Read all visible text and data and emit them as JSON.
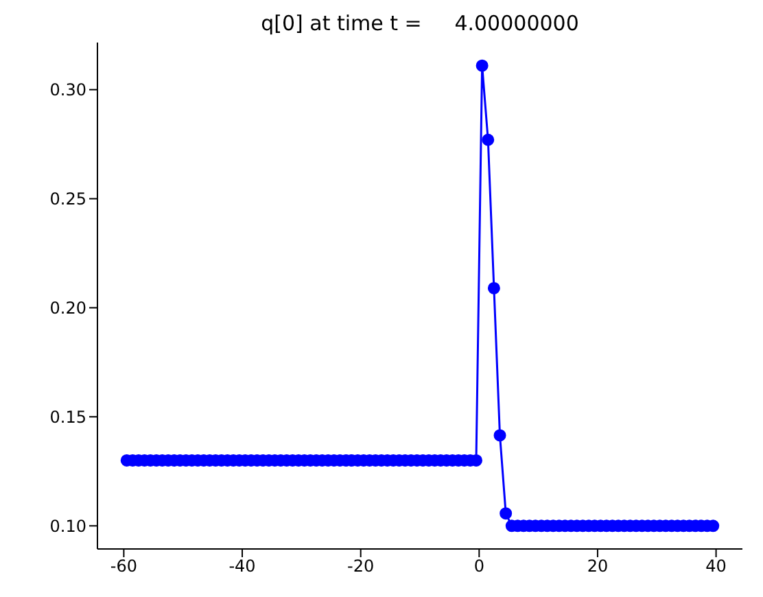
{
  "chart_data": {
    "type": "line",
    "title": "q[0] at time t =     4.00000000",
    "x": [
      -59.5,
      -58.5,
      -57.5,
      -56.5,
      -55.5,
      -54.5,
      -53.5,
      -52.5,
      -51.5,
      -50.5,
      -49.5,
      -48.5,
      -47.5,
      -46.5,
      -45.5,
      -44.5,
      -43.5,
      -42.5,
      -41.5,
      -40.5,
      -39.5,
      -38.5,
      -37.5,
      -36.5,
      -35.5,
      -34.5,
      -33.5,
      -32.5,
      -31.5,
      -30.5,
      -29.5,
      -28.5,
      -27.5,
      -26.5,
      -25.5,
      -24.5,
      -23.5,
      -22.5,
      -21.5,
      -20.5,
      -19.5,
      -18.5,
      -17.5,
      -16.5,
      -15.5,
      -14.5,
      -13.5,
      -12.5,
      -11.5,
      -10.5,
      -9.5,
      -8.5,
      -7.5,
      -6.5,
      -5.5,
      -4.5,
      -3.5,
      -2.5,
      -1.5,
      -0.5,
      0.5,
      1.5,
      2.5,
      3.5,
      4.5,
      5.5,
      6.5,
      7.5,
      8.5,
      9.5,
      10.5,
      11.5,
      12.5,
      13.5,
      14.5,
      15.5,
      16.5,
      17.5,
      18.5,
      19.5,
      20.5,
      21.5,
      22.5,
      23.5,
      24.5,
      25.5,
      26.5,
      27.5,
      28.5,
      29.5,
      30.5,
      31.5,
      32.5,
      33.5,
      34.5,
      35.5,
      36.5,
      37.5,
      38.5,
      39.5
    ],
    "series": [
      {
        "color": "#0000ff",
        "values": [
          0.13,
          0.13,
          0.13,
          0.13,
          0.13,
          0.13,
          0.13,
          0.13,
          0.13,
          0.13,
          0.13,
          0.13,
          0.13,
          0.13,
          0.13,
          0.13,
          0.13,
          0.13,
          0.13,
          0.13,
          0.13,
          0.13,
          0.13,
          0.13,
          0.13,
          0.13,
          0.13,
          0.13,
          0.13,
          0.13,
          0.13,
          0.13,
          0.13,
          0.13,
          0.13,
          0.13,
          0.13,
          0.13,
          0.13,
          0.13,
          0.13,
          0.13,
          0.13,
          0.13,
          0.13,
          0.13,
          0.13,
          0.13,
          0.13,
          0.13,
          0.13,
          0.13,
          0.13,
          0.13,
          0.13,
          0.13,
          0.13,
          0.13,
          0.13,
          0.13,
          0.311,
          0.277,
          0.209,
          0.1415,
          0.1057,
          0.1,
          0.1,
          0.1,
          0.1,
          0.1,
          0.1,
          0.1,
          0.1,
          0.1,
          0.1,
          0.1,
          0.1,
          0.1,
          0.1,
          0.1,
          0.1,
          0.1,
          0.1,
          0.1,
          0.1,
          0.1,
          0.1,
          0.1,
          0.1,
          0.1,
          0.1,
          0.1,
          0.1,
          0.1,
          0.1,
          0.1,
          0.1,
          0.1,
          0.1,
          0.1
        ]
      }
    ],
    "xlim": [
      -64.45,
      44.45
    ],
    "xticks": [
      -60,
      -40,
      -20,
      0,
      20,
      40
    ],
    "ylim": [
      0.0894,
      0.3216
    ],
    "yticks": [
      {
        "value": 0.1,
        "label": "0.10"
      },
      0.15,
      {
        "value": 0.2,
        "label": "0.20"
      },
      0.25,
      {
        "value": 0.3,
        "label": "0.30"
      }
    ],
    "marker": "circle",
    "line_style": "solid",
    "grid": false
  }
}
